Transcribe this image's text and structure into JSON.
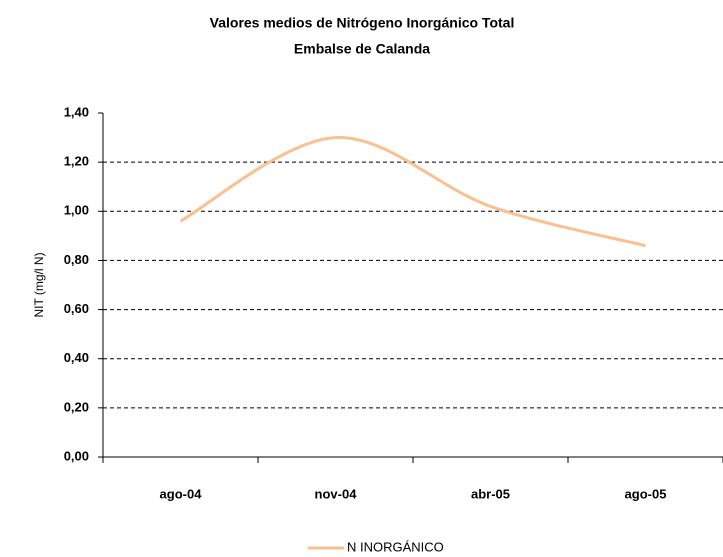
{
  "chart_data": {
    "type": "line",
    "title": "Valores medios de Nitrógeno Inorgánico Total",
    "subtitle": "Embalse de Calanda",
    "y_label": "NIT (mg/l N)",
    "categories": [
      "ago-04",
      "nov-04",
      "abr-05",
      "ago-05"
    ],
    "series": [
      {
        "name": "N INORGÁNICO",
        "color": "#fac090",
        "values": [
          0.96,
          1.3,
          1.02,
          0.86
        ]
      }
    ],
    "ylim": [
      0,
      1.4
    ],
    "yticks": [
      {
        "value": 0,
        "label": "0,00"
      },
      {
        "value": 0.2,
        "label": "0,20"
      },
      {
        "value": 0.4,
        "label": "0,40"
      },
      {
        "value": 0.6,
        "label": "0,60"
      },
      {
        "value": 0.8,
        "label": "0,80"
      },
      {
        "value": 1.0,
        "label": "1,00"
      },
      {
        "value": 1.2,
        "label": "1,20"
      },
      {
        "value": 1.4,
        "label": "1,40"
      }
    ],
    "grid": true,
    "smooth": true,
    "legend": "bottom"
  }
}
